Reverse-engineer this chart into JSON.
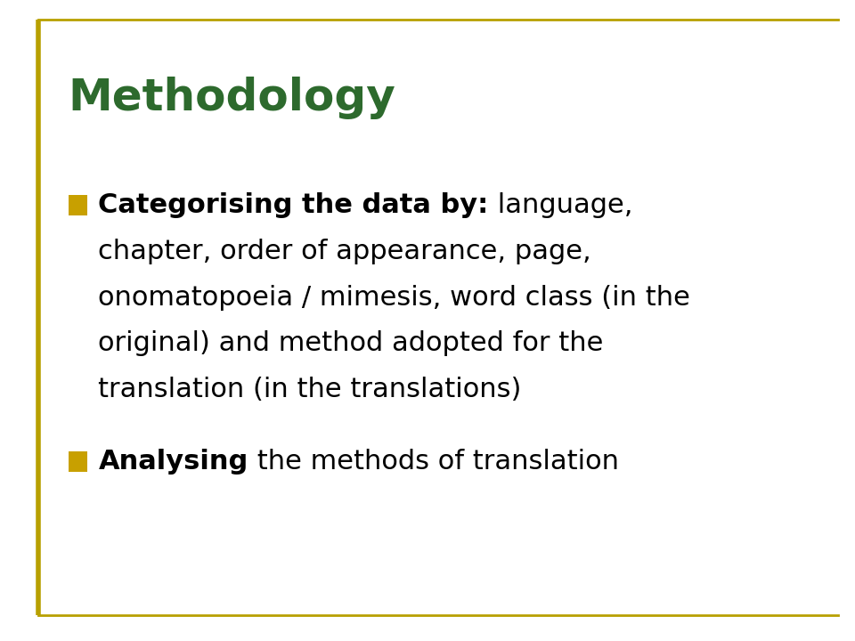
{
  "title": "Methodology",
  "title_color": "#2D6A2D",
  "title_fontsize": 36,
  "background_color": "#FFFFFF",
  "border_color": "#B8A000",
  "bullet_color": "#C8A000",
  "bullet1_bold": "Categorising the data by:",
  "bullet1_line1_normal": " language,",
  "bullet1_line2": "chapter, order of appearance, page,",
  "bullet1_line3": "onomatopoeia / mimesis, word class (in the",
  "bullet1_line4": "original) and method adopted for the",
  "bullet1_line5": "translation (in the translations)",
  "bullet2_bold": "Analysing",
  "bullet2_normal": " the methods of translation",
  "text_color": "#000000",
  "text_fontsize": 22,
  "left_bar_color": "#B8A000"
}
